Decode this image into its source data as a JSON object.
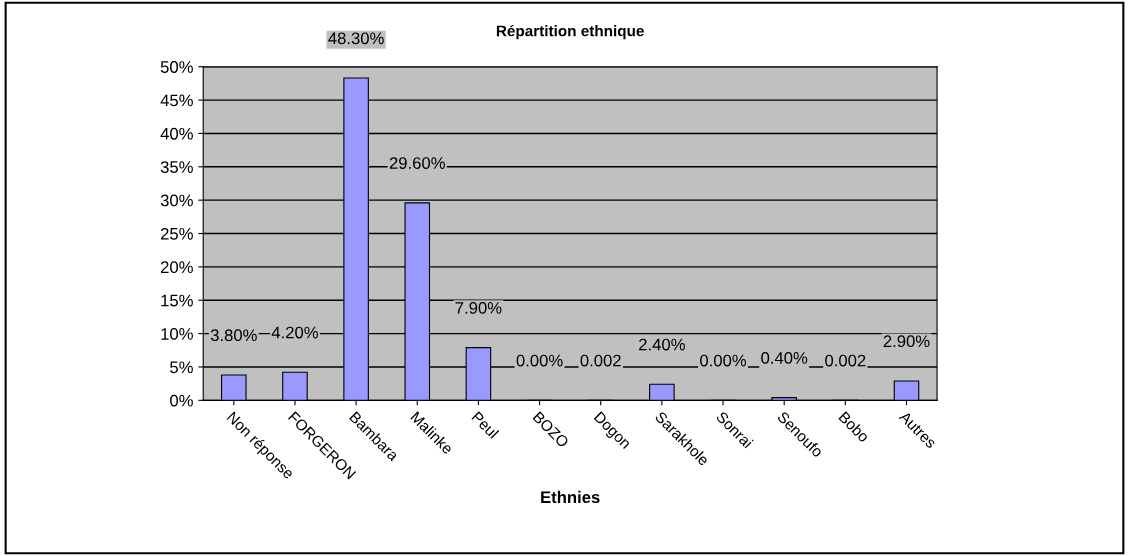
{
  "chart_data": {
    "type": "bar",
    "title": "Répartition ethnique",
    "xlabel": "Ethnies",
    "categories": [
      "Non réponse",
      "FORGERON",
      "Bambara",
      "Malinke",
      "Peul",
      "BOZO",
      "Dogon",
      "Sarakhole",
      "Sonrai",
      "Senoufo",
      "Bobo",
      "Autres"
    ],
    "values": [
      3.8,
      4.2,
      48.3,
      29.6,
      7.9,
      0.0,
      0.002,
      2.4,
      0.0,
      0.4,
      0.002,
      2.9
    ],
    "value_labels": [
      "3.80%",
      "4.20%",
      "48.30%",
      "29.60%",
      "7.90%",
      "0.00%",
      "0.002",
      "2.40%",
      "0.00%",
      "0.40%",
      "0.002",
      "2.90%"
    ],
    "color": "#9999ff",
    "ylim": [
      0,
      50
    ],
    "yticks": [
      {
        "value": 0,
        "label": "0%"
      },
      {
        "value": 5,
        "label": "5%"
      },
      {
        "value": 10,
        "label": "10%"
      },
      {
        "value": 15,
        "label": "15%"
      },
      {
        "value": 20,
        "label": "20%"
      },
      {
        "value": 25,
        "label": "25%"
      },
      {
        "value": 30,
        "label": "30%"
      },
      {
        "value": 35,
        "label": "35%"
      },
      {
        "value": 40,
        "label": "40%"
      },
      {
        "value": 45,
        "label": "45%"
      },
      {
        "value": 50,
        "label": "50%"
      }
    ],
    "grid": "y",
    "legend": false
  }
}
